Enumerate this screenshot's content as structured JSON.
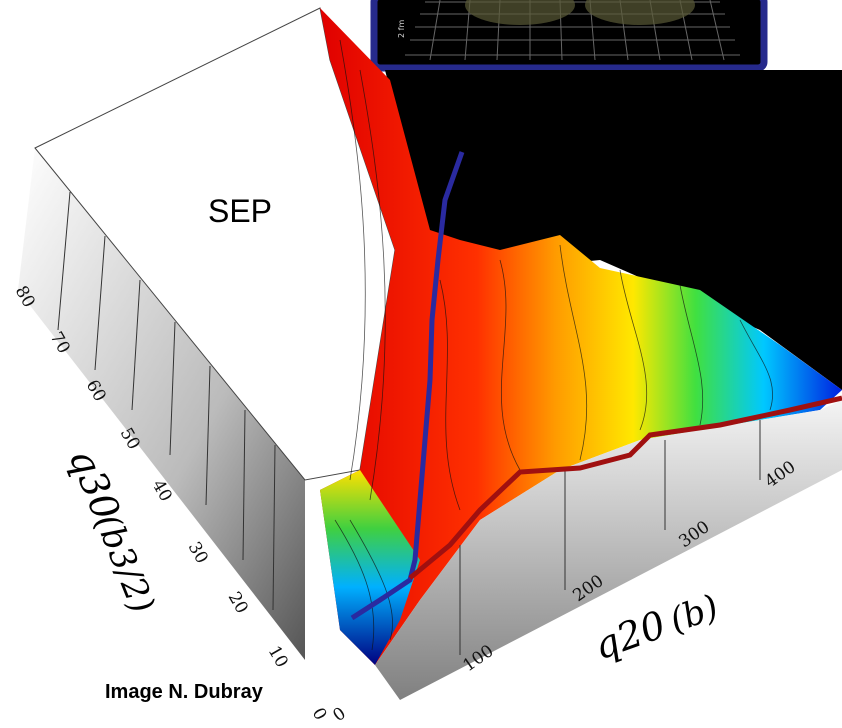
{
  "annotations": {
    "region": "SEP",
    "credit": "Image N. Dubray"
  },
  "axes": {
    "q30": {
      "label_main": "q30",
      "label_unit": "(b3/2)",
      "ticks": [
        0,
        10,
        20,
        30,
        40,
        50,
        60,
        70,
        80
      ]
    },
    "q20": {
      "label_main": "q20",
      "label_unit": "(b)",
      "ticks": [
        0,
        100,
        200,
        300,
        400
      ]
    }
  },
  "inset": {
    "scale_label": "2 fm"
  }
}
